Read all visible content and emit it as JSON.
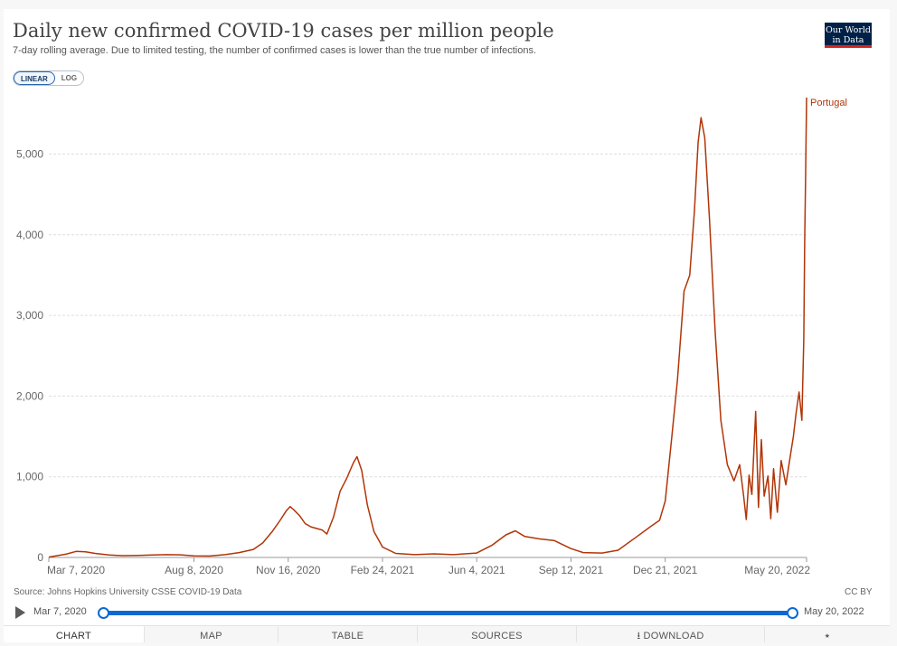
{
  "header": {
    "title": "Daily new confirmed COVID-19 cases per million people",
    "subtitle": "7-day rolling average. Due to limited testing, the number of confirmed cases is lower than the true number of infections.",
    "logo_line1": "Our World",
    "logo_line2": "in Data",
    "scale_linear": "LINEAR",
    "scale_log": "LOG"
  },
  "footer": {
    "source": "Source: Johns Hopkins University CSSE COVID-19 Data",
    "license": "CC BY"
  },
  "timeline": {
    "start_label": "Mar 7, 2020",
    "end_label": "May 20, 2022",
    "play_icon": "play-icon"
  },
  "tabs": {
    "chart": "CHART",
    "map": "MAP",
    "table": "TABLE",
    "sources": "SOURCES",
    "download": "DOWNLOAD",
    "share_icon": "share-icon",
    "download_icon": "download-icon"
  },
  "colors": {
    "series": "#b13507",
    "grid": "#dddddd",
    "accent": "#0a6ad2"
  },
  "chart_data": {
    "type": "line",
    "title": "Daily new confirmed COVID-19 cases per million people",
    "subtitle": "7-day rolling average. Due to limited testing, the number of confirmed cases is lower than the true number of infections.",
    "x_ticks": [
      "Mar 7, 2020",
      "Aug 8, 2020",
      "Nov 16, 2020",
      "Feb 24, 2021",
      "Jun 4, 2021",
      "Sep 12, 2021",
      "Dec 21, 2021",
      "May 20, 2022"
    ],
    "y_ticks": [
      "0",
      "1,000",
      "2,000",
      "3,000",
      "4,000",
      "5,000"
    ],
    "ylim": [
      0,
      5700
    ],
    "xlim": [
      "2020-03-07",
      "2022-05-20"
    ],
    "grid": true,
    "scale": "linear",
    "series": [
      {
        "name": "Portugal",
        "color": "#b13507",
        "points": [
          [
            "2020-03-07",
            5
          ],
          [
            "2020-03-25",
            40
          ],
          [
            "2020-04-05",
            75
          ],
          [
            "2020-04-15",
            70
          ],
          [
            "2020-04-25",
            50
          ],
          [
            "2020-05-10",
            30
          ],
          [
            "2020-05-25",
            22
          ],
          [
            "2020-06-10",
            25
          ],
          [
            "2020-06-25",
            30
          ],
          [
            "2020-07-10",
            35
          ],
          [
            "2020-07-25",
            32
          ],
          [
            "2020-08-08",
            20
          ],
          [
            "2020-08-25",
            18
          ],
          [
            "2020-09-10",
            35
          ],
          [
            "2020-09-25",
            60
          ],
          [
            "2020-10-10",
            100
          ],
          [
            "2020-10-20",
            180
          ],
          [
            "2020-10-30",
            320
          ],
          [
            "2020-11-08",
            470
          ],
          [
            "2020-11-14",
            580
          ],
          [
            "2020-11-18",
            630
          ],
          [
            "2020-11-22",
            590
          ],
          [
            "2020-11-28",
            520
          ],
          [
            "2020-12-04",
            420
          ],
          [
            "2020-12-10",
            380
          ],
          [
            "2020-12-16",
            360
          ],
          [
            "2020-12-22",
            340
          ],
          [
            "2020-12-27",
            290
          ],
          [
            "2021-01-03",
            500
          ],
          [
            "2021-01-10",
            820
          ],
          [
            "2021-01-17",
            980
          ],
          [
            "2021-01-24",
            1170
          ],
          [
            "2021-01-28",
            1250
          ],
          [
            "2021-02-02",
            1080
          ],
          [
            "2021-02-08",
            650
          ],
          [
            "2021-02-15",
            320
          ],
          [
            "2021-02-24",
            130
          ],
          [
            "2021-03-10",
            50
          ],
          [
            "2021-03-30",
            35
          ],
          [
            "2021-04-20",
            45
          ],
          [
            "2021-05-10",
            35
          ],
          [
            "2021-06-04",
            55
          ],
          [
            "2021-06-20",
            150
          ],
          [
            "2021-07-05",
            280
          ],
          [
            "2021-07-15",
            330
          ],
          [
            "2021-07-25",
            260
          ],
          [
            "2021-08-10",
            230
          ],
          [
            "2021-08-25",
            210
          ],
          [
            "2021-09-12",
            110
          ],
          [
            "2021-09-25",
            60
          ],
          [
            "2021-10-15",
            55
          ],
          [
            "2021-11-01",
            90
          ],
          [
            "2021-11-20",
            250
          ],
          [
            "2021-12-05",
            380
          ],
          [
            "2021-12-15",
            460
          ],
          [
            "2021-12-21",
            700
          ],
          [
            "2021-12-28",
            1500
          ],
          [
            "2022-01-03",
            2200
          ],
          [
            "2022-01-10",
            3300
          ],
          [
            "2022-01-16",
            3500
          ],
          [
            "2022-01-21",
            4300
          ],
          [
            "2022-01-25",
            5150
          ],
          [
            "2022-01-28",
            5450
          ],
          [
            "2022-02-01",
            5200
          ],
          [
            "2022-02-06",
            4200
          ],
          [
            "2022-02-12",
            2800
          ],
          [
            "2022-02-18",
            1700
          ],
          [
            "2022-02-25",
            1150
          ],
          [
            "2022-03-04",
            950
          ],
          [
            "2022-03-10",
            1150
          ],
          [
            "2022-03-14",
            780
          ],
          [
            "2022-03-17",
            470
          ],
          [
            "2022-03-20",
            1020
          ],
          [
            "2022-03-23",
            780
          ],
          [
            "2022-03-27",
            1810
          ],
          [
            "2022-03-30",
            620
          ],
          [
            "2022-04-02",
            1460
          ],
          [
            "2022-04-05",
            760
          ],
          [
            "2022-04-09",
            1010
          ],
          [
            "2022-04-12",
            480
          ],
          [
            "2022-04-15",
            1100
          ],
          [
            "2022-04-19",
            560
          ],
          [
            "2022-04-23",
            1200
          ],
          [
            "2022-04-28",
            900
          ],
          [
            "2022-05-03",
            1280
          ],
          [
            "2022-05-06",
            1500
          ],
          [
            "2022-05-09",
            1800
          ],
          [
            "2022-05-12",
            2050
          ],
          [
            "2022-05-15",
            1700
          ],
          [
            "2022-05-17",
            2700
          ],
          [
            "2022-05-18",
            3900
          ],
          [
            "2022-05-19",
            4800
          ],
          [
            "2022-05-20",
            5700
          ]
        ]
      }
    ],
    "end_label": "Portugal"
  }
}
